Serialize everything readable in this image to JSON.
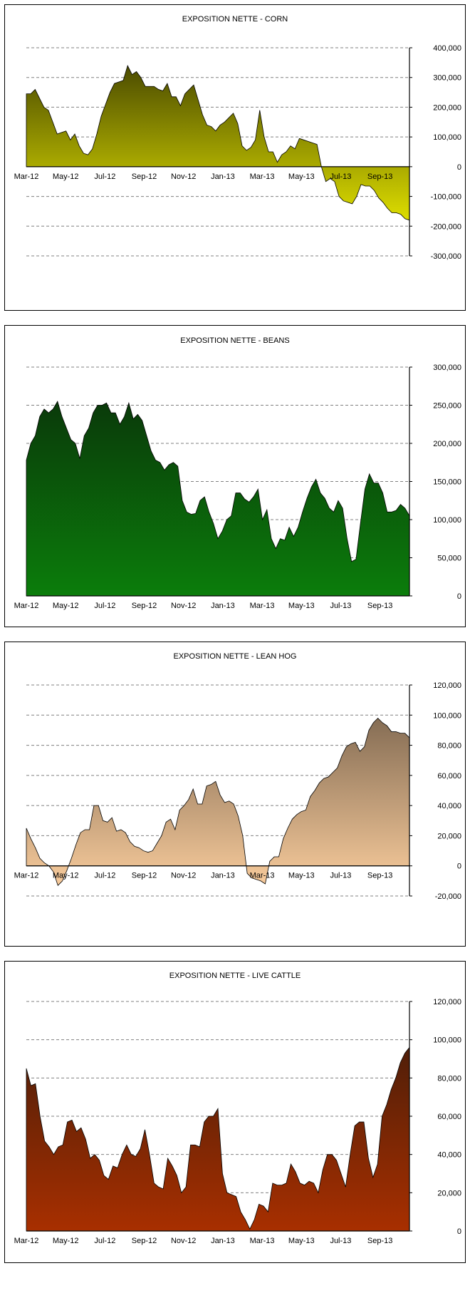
{
  "chart_data": [
    {
      "id": "corn",
      "type": "area",
      "title": "EXPOSITION NETTE - CORN",
      "xlabel": "",
      "ylabel": "",
      "ylim": [
        -300000,
        400000
      ],
      "yticks": [
        400000,
        300000,
        200000,
        100000,
        0,
        -100000,
        -200000,
        -300000
      ],
      "ytick_labels": [
        "400,000",
        "300,000",
        "200,000",
        "100,000",
        "0",
        "-100,000",
        "-200,000",
        "-300,000"
      ],
      "x_labels": [
        "Mar-12",
        "May-12",
        "Jul-12",
        "Sep-12",
        "Nov-12",
        "Jan-13",
        "Mar-13",
        "May-13",
        "Jul-13",
        "Sep-13"
      ],
      "x_axis_at_zero": true,
      "grid": true,
      "fill_top": "#3a3a00",
      "fill_bottom": "#ffff00",
      "values": [
        245000,
        245000,
        260000,
        230000,
        200000,
        190000,
        150000,
        110000,
        115000,
        120000,
        90000,
        110000,
        70000,
        45000,
        40000,
        60000,
        110000,
        170000,
        210000,
        250000,
        280000,
        285000,
        290000,
        340000,
        310000,
        320000,
        300000,
        270000,
        270000,
        270000,
        260000,
        255000,
        280000,
        235000,
        235000,
        205000,
        245000,
        260000,
        275000,
        225000,
        175000,
        140000,
        135000,
        120000,
        140000,
        150000,
        165000,
        180000,
        145000,
        70000,
        55000,
        65000,
        90000,
        190000,
        100000,
        50000,
        50000,
        15000,
        40000,
        50000,
        70000,
        60000,
        95000,
        90000,
        85000,
        80000,
        75000,
        0,
        -50000,
        -40000,
        -50000,
        -100000,
        -115000,
        -120000,
        -125000,
        -100000,
        -60000,
        -65000,
        -65000,
        -80000,
        -105000,
        -120000,
        -140000,
        -155000,
        -155000,
        -160000,
        -175000,
        -180000
      ]
    },
    {
      "id": "beans",
      "type": "area",
      "title": "EXPOSITION NETTE - BEANS",
      "xlabel": "",
      "ylabel": "",
      "ylim": [
        0,
        300000
      ],
      "yticks": [
        300000,
        250000,
        200000,
        150000,
        100000,
        50000,
        0
      ],
      "ytick_labels": [
        "300,000",
        "250,000",
        "200,000",
        "150,000",
        "100,000",
        "50,000",
        "0"
      ],
      "x_labels": [
        "Mar-12",
        "May-12",
        "Jul-12",
        "Sep-12",
        "Nov-12",
        "Jan-13",
        "Mar-13",
        "May-13",
        "Jul-13",
        "Sep-13"
      ],
      "x_axis_at_zero": false,
      "grid": true,
      "fill_top": "#0a2e0a",
      "fill_bottom": "#0b7d0b",
      "values": [
        178000,
        200000,
        210000,
        235000,
        245000,
        240000,
        245000,
        255000,
        235000,
        220000,
        205000,
        200000,
        180000,
        210000,
        220000,
        240000,
        250000,
        250000,
        253000,
        240000,
        240000,
        225000,
        235000,
        253000,
        232000,
        238000,
        230000,
        210000,
        190000,
        178000,
        175000,
        165000,
        172000,
        175000,
        170000,
        125000,
        110000,
        107000,
        108000,
        125000,
        130000,
        110000,
        95000,
        75000,
        85000,
        100000,
        105000,
        135000,
        135000,
        127000,
        123000,
        130000,
        140000,
        100000,
        113000,
        75000,
        62000,
        75000,
        73000,
        90000,
        78000,
        90000,
        110000,
        128000,
        143000,
        153000,
        135000,
        128000,
        115000,
        110000,
        125000,
        115000,
        75000,
        45000,
        48000,
        95000,
        140000,
        160000,
        148000,
        148000,
        135000,
        110000,
        110000,
        112000,
        120000,
        115000,
        105000
      ]
    },
    {
      "id": "lean-hog",
      "type": "area",
      "title": "EXPOSITION NETTE - LEAN HOG",
      "xlabel": "",
      "ylabel": "",
      "ylim": [
        -20000,
        120000
      ],
      "yticks": [
        120000,
        100000,
        80000,
        60000,
        40000,
        20000,
        0,
        -20000
      ],
      "ytick_labels": [
        "120,000",
        "100,000",
        "80,000",
        "60,000",
        "40,000",
        "20,000",
        "0",
        "-20,000"
      ],
      "x_labels": [
        "Mar-12",
        "May-12",
        "Jul-12",
        "Sep-12",
        "Nov-12",
        "Jan-13",
        "Mar-13",
        "May-13",
        "Jul-13",
        "Sep-13"
      ],
      "x_axis_at_zero": true,
      "grid": true,
      "fill_top": "#6e5a46",
      "fill_bottom": "#ffd1a0",
      "values": [
        25000,
        18000,
        12000,
        5000,
        2000,
        0,
        -4000,
        -13000,
        -10000,
        -3000,
        5000,
        14000,
        22000,
        24000,
        24000,
        40000,
        40000,
        30000,
        29000,
        32000,
        23000,
        24000,
        22000,
        16000,
        13000,
        12000,
        10000,
        9000,
        10000,
        15000,
        20000,
        29000,
        31000,
        24000,
        37000,
        40000,
        44000,
        51000,
        41000,
        41000,
        53000,
        54000,
        56000,
        47000,
        42000,
        43000,
        41000,
        33000,
        20000,
        -5000,
        -8000,
        -9000,
        -10000,
        -12000,
        3000,
        6000,
        6000,
        18000,
        25000,
        31000,
        34000,
        36000,
        37000,
        46000,
        50000,
        55000,
        58000,
        59000,
        62000,
        65000,
        73000,
        79000,
        81000,
        82000,
        76000,
        79000,
        90000,
        95000,
        98000,
        95000,
        93000,
        89000,
        89000,
        88000,
        88000,
        85000
      ]
    },
    {
      "id": "live-cattle",
      "type": "area",
      "title": "EXPOSITION NETTE - LIVE CATTLE",
      "xlabel": "",
      "ylabel": "",
      "ylim": [
        0,
        120000
      ],
      "yticks": [
        120000,
        100000,
        80000,
        60000,
        40000,
        20000,
        0
      ],
      "ytick_labels": [
        "120,000",
        "100,000",
        "80,000",
        "60,000",
        "40,000",
        "20,000",
        "0"
      ],
      "x_labels": [
        "Mar-12",
        "May-12",
        "Jul-12",
        "Sep-12",
        "Nov-12",
        "Jan-13",
        "Mar-13",
        "May-13",
        "Jul-13",
        "Sep-13"
      ],
      "x_axis_at_zero": false,
      "grid": true,
      "fill_top": "#3a1a0a",
      "fill_bottom": "#a82f00",
      "values": [
        85000,
        76000,
        77000,
        60000,
        47000,
        44000,
        40000,
        44000,
        45000,
        57000,
        58000,
        52000,
        54000,
        48000,
        38000,
        40000,
        37000,
        29000,
        27000,
        34000,
        33000,
        40000,
        45000,
        40000,
        39000,
        43000,
        53000,
        40000,
        25000,
        23000,
        22000,
        38000,
        34000,
        29000,
        20000,
        23000,
        45000,
        45000,
        44000,
        57000,
        60000,
        60000,
        64000,
        30000,
        20000,
        19000,
        18000,
        10000,
        6000,
        1000,
        6000,
        14000,
        13000,
        10000,
        25000,
        24000,
        24000,
        25000,
        35000,
        31000,
        25000,
        24000,
        26000,
        25000,
        20000,
        32000,
        40000,
        40000,
        37000,
        30000,
        23000,
        40000,
        55000,
        57000,
        57000,
        38000,
        28000,
        35000,
        60000,
        66000,
        74000,
        80000,
        88000,
        93000,
        96000
      ]
    }
  ]
}
